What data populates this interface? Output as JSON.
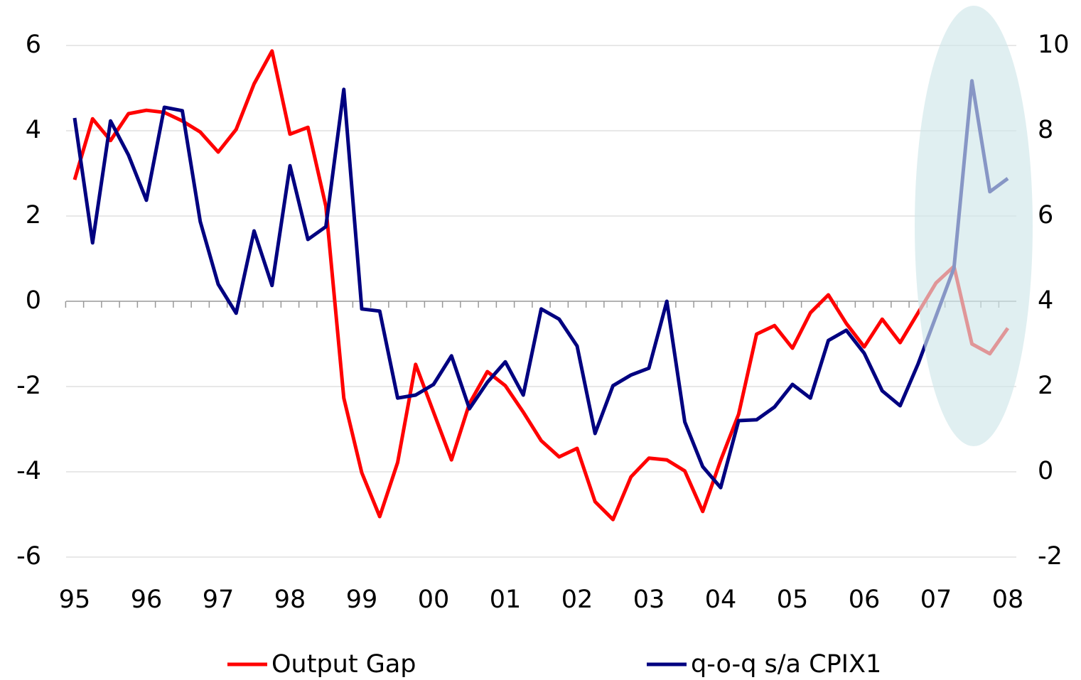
{
  "chart_data": {
    "type": "line",
    "categories": [
      "95",
      null,
      null,
      null,
      "96",
      null,
      null,
      null,
      "97",
      null,
      null,
      null,
      "98",
      null,
      null,
      null,
      "99",
      null,
      null,
      null,
      "00",
      null,
      null,
      null,
      "01",
      null,
      null,
      null,
      "02",
      null,
      null,
      null,
      "03",
      null,
      null,
      null,
      "04",
      null,
      null,
      null,
      "05",
      null,
      null,
      null,
      "06",
      null,
      null,
      null,
      "07",
      null,
      null,
      null,
      "08"
    ],
    "series": [
      {
        "name": "Output Gap",
        "color": "#ff0000",
        "values": [
          2.85,
          4.28,
          3.77,
          4.4,
          4.48,
          4.43,
          4.23,
          3.97,
          3.5,
          4.03,
          5.1,
          5.87,
          3.92,
          4.08,
          2.23,
          -2.27,
          -4.02,
          -5.05,
          -3.78,
          -1.48,
          -2.6,
          -3.72,
          -2.4,
          -1.65,
          -1.98,
          -2.6,
          -3.27,
          -3.65,
          -3.45,
          -4.7,
          -5.12,
          -4.12,
          -3.68,
          -3.72,
          -3.98,
          -4.93,
          -3.73,
          -2.65,
          -0.77,
          -0.57,
          -1.1,
          -0.27,
          0.15,
          -0.52,
          -1.07,
          -0.42,
          -0.97,
          -0.27,
          0.43,
          0.82,
          -1.0,
          -1.23,
          -0.63
        ]
      },
      {
        "name": "q-o-q s/a CPIX1",
        "color": "#000080",
        "axis": "y2",
        "values": [
          8.3,
          5.37,
          8.23,
          7.43,
          6.37,
          8.55,
          8.47,
          5.87,
          4.4,
          3.72,
          5.65,
          4.37,
          7.18,
          5.45,
          5.75,
          8.97,
          3.82,
          3.77,
          1.73,
          1.8,
          2.05,
          2.72,
          1.48,
          2.1,
          2.58,
          1.8,
          3.82,
          3.58,
          2.95,
          0.9,
          2.02,
          2.27,
          2.43,
          4.0,
          1.17,
          0.12,
          -0.37,
          1.2,
          1.22,
          1.52,
          2.05,
          1.73,
          3.08,
          3.32,
          2.78,
          1.9,
          1.55,
          2.53,
          3.65,
          4.78,
          9.17,
          6.57,
          6.88
        ]
      }
    ],
    "ylim": [
      -6,
      6
    ],
    "yticks": [
      -6,
      -4,
      -2,
      0,
      2,
      4,
      6
    ],
    "y2lim": [
      -2,
      10
    ],
    "y2ticks": [
      -2,
      0,
      2,
      4,
      6,
      8,
      10
    ],
    "grid": true,
    "legend": "bottom"
  }
}
